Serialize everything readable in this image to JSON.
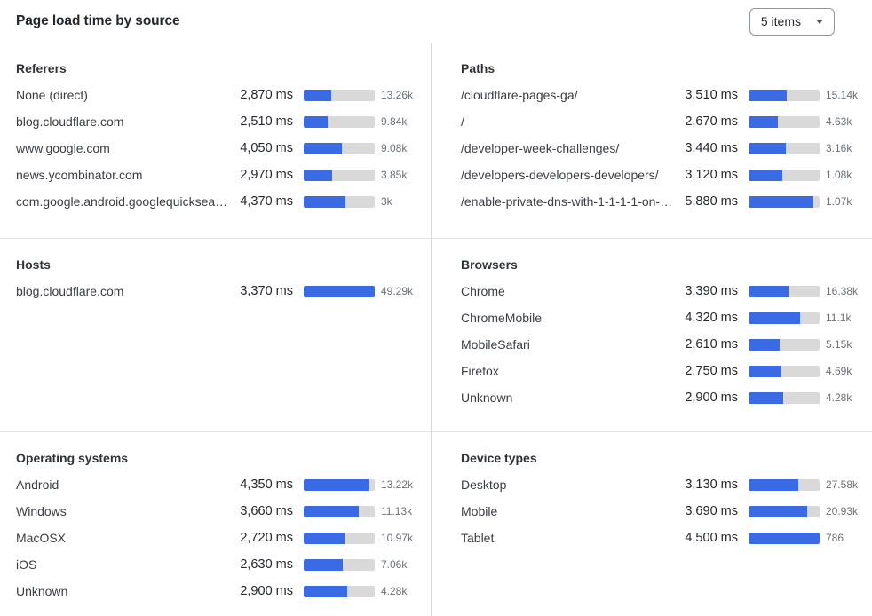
{
  "header": {
    "title": "Page load time by source",
    "items_selector_label": "5 items"
  },
  "colors": {
    "bar_fill": "#3a6be5",
    "bar_track": "#d9d9d9"
  },
  "panels": [
    {
      "title": "Referers",
      "rows": [
        {
          "label": "None (direct)",
          "ms": "2,870 ms",
          "count": "13.26k",
          "bar_pct": 38.3
        },
        {
          "label": "blog.cloudflare.com",
          "ms": "2,510 ms",
          "count": "9.84k",
          "bar_pct": 33.5
        },
        {
          "label": "www.google.com",
          "ms": "4,050 ms",
          "count": "9.08k",
          "bar_pct": 54.0
        },
        {
          "label": "news.ycombinator.com",
          "ms": "2,970 ms",
          "count": "3.85k",
          "bar_pct": 39.6
        },
        {
          "label": "com.google.android.googlequicksearc…",
          "ms": "4,370 ms",
          "count": "3k",
          "bar_pct": 58.3
        }
      ]
    },
    {
      "title": "Paths",
      "rows": [
        {
          "label": "/cloudflare-pages-ga/",
          "ms": "3,510 ms",
          "count": "15.14k",
          "bar_pct": 54.0
        },
        {
          "label": "/",
          "ms": "2,670 ms",
          "count": "4.63k",
          "bar_pct": 41.1
        },
        {
          "label": "/developer-week-challenges/",
          "ms": "3,440 ms",
          "count": "3.16k",
          "bar_pct": 52.9
        },
        {
          "label": "/developers-developers-developers/",
          "ms": "3,120 ms",
          "count": "1.08k",
          "bar_pct": 48.0
        },
        {
          "label": "/enable-private-dns-with-1-1-1-1-on-…",
          "ms": "5,880 ms",
          "count": "1.07k",
          "bar_pct": 90.5
        }
      ]
    },
    {
      "title": "Hosts",
      "rows": [
        {
          "label": "blog.cloudflare.com",
          "ms": "3,370 ms",
          "count": "49.29k",
          "bar_pct": 100
        }
      ]
    },
    {
      "title": "Browsers",
      "rows": [
        {
          "label": "Chrome",
          "ms": "3,390 ms",
          "count": "16.38k",
          "bar_pct": 56.5
        },
        {
          "label": "ChromeMobile",
          "ms": "4,320 ms",
          "count": "11.1k",
          "bar_pct": 72.0
        },
        {
          "label": "MobileSafari",
          "ms": "2,610 ms",
          "count": "5.15k",
          "bar_pct": 43.5
        },
        {
          "label": "Firefox",
          "ms": "2,750 ms",
          "count": "4.69k",
          "bar_pct": 45.8
        },
        {
          "label": "Unknown",
          "ms": "2,900 ms",
          "count": "4.28k",
          "bar_pct": 48.3
        }
      ]
    },
    {
      "title": "Operating systems",
      "rows": [
        {
          "label": "Android",
          "ms": "4,350 ms",
          "count": "13.22k",
          "bar_pct": 91.8
        },
        {
          "label": "Windows",
          "ms": "3,660 ms",
          "count": "11.13k",
          "bar_pct": 77.2
        },
        {
          "label": "MacOSX",
          "ms": "2,720 ms",
          "count": "10.97k",
          "bar_pct": 57.4
        },
        {
          "label": "iOS",
          "ms": "2,630 ms",
          "count": "7.06k",
          "bar_pct": 55.5
        },
        {
          "label": "Unknown",
          "ms": "2,900 ms",
          "count": "4.28k",
          "bar_pct": 61.2
        }
      ]
    },
    {
      "title": "Device types",
      "rows": [
        {
          "label": "Desktop",
          "ms": "3,130 ms",
          "count": "27.58k",
          "bar_pct": 69.6
        },
        {
          "label": "Mobile",
          "ms": "3,690 ms",
          "count": "20.93k",
          "bar_pct": 82.0
        },
        {
          "label": "Tablet",
          "ms": "4,500 ms",
          "count": "786",
          "bar_pct": 100
        }
      ]
    }
  ]
}
